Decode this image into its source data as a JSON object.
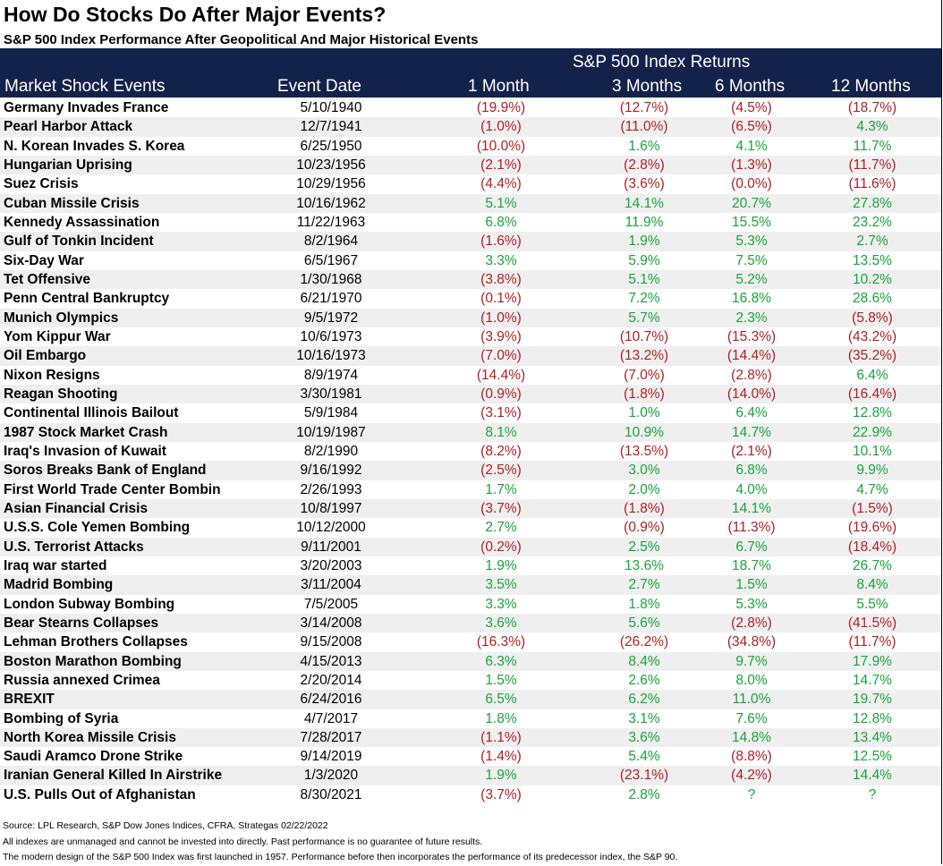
{
  "title": "How Do Stocks Do After Major Events?",
  "subtitle": "S&P 500 Index Performance After Geopolitical And Major Historical Events",
  "header": {
    "group_label": "S&P 500 Index Returns",
    "col_event": "Market Shock Events",
    "col_date": "Event Date",
    "col_1m": "1 Month",
    "col_3m": "3 Months",
    "col_6m": "6 Months",
    "col_12m": "12 Months"
  },
  "colors": {
    "header_bg": "#13224a",
    "negative": "#b01e24",
    "positive": "#18a43a",
    "row_alt": "#efefef"
  },
  "chart_data": {
    "type": "table",
    "columns": [
      "Market Shock Events",
      "Event Date",
      "1 Month",
      "3 Months",
      "6 Months",
      "12 Months"
    ],
    "rows": [
      [
        "Germany Invades France",
        "5/10/1940",
        "(19.9%)",
        "(12.7%)",
        "(4.5%)",
        "(18.7%)"
      ],
      [
        "Pearl Harbor Attack",
        "12/7/1941",
        "(1.0%)",
        "(11.0%)",
        "(6.5%)",
        "4.3%"
      ],
      [
        "N. Korean Invades S. Korea",
        "6/25/1950",
        "(10.0%)",
        "1.6%",
        "4.1%",
        "11.7%"
      ],
      [
        "Hungarian Uprising",
        "10/23/1956",
        "(2.1%)",
        "(2.8%)",
        "(1.3%)",
        "(11.7%)"
      ],
      [
        "Suez Crisis",
        "10/29/1956",
        "(4.4%)",
        "(3.6%)",
        "(0.0%)",
        "(11.6%)"
      ],
      [
        "Cuban Missile Crisis",
        "10/16/1962",
        "5.1%",
        "14.1%",
        "20.7%",
        "27.8%"
      ],
      [
        "Kennedy Assassination",
        "11/22/1963",
        "6.8%",
        "11.9%",
        "15.5%",
        "23.2%"
      ],
      [
        "Gulf of Tonkin Incident",
        "8/2/1964",
        "(1.6%)",
        "1.9%",
        "5.3%",
        "2.7%"
      ],
      [
        "Six-Day War",
        "6/5/1967",
        "3.3%",
        "5.9%",
        "7.5%",
        "13.5%"
      ],
      [
        "Tet Offensive",
        "1/30/1968",
        "(3.8%)",
        "5.1%",
        "5.2%",
        "10.2%"
      ],
      [
        "Penn Central Bankruptcy",
        "6/21/1970",
        "(0.1%)",
        "7.2%",
        "16.8%",
        "28.6%"
      ],
      [
        "Munich Olympics",
        "9/5/1972",
        "(1.0%)",
        "5.7%",
        "2.3%",
        "(5.8%)"
      ],
      [
        "Yom Kippur War",
        "10/6/1973",
        "(3.9%)",
        "(10.7%)",
        "(15.3%)",
        "(43.2%)"
      ],
      [
        "Oil Embargo",
        "10/16/1973",
        "(7.0%)",
        "(13.2%)",
        "(14.4%)",
        "(35.2%)"
      ],
      [
        "Nixon Resigns",
        "8/9/1974",
        "(14.4%)",
        "(7.0%)",
        "(2.8%)",
        "6.4%"
      ],
      [
        "Reagan Shooting",
        "3/30/1981",
        "(0.9%)",
        "(1.8%)",
        "(14.0%)",
        "(16.4%)"
      ],
      [
        "Continental Illinois Bailout",
        "5/9/1984",
        "(3.1%)",
        "1.0%",
        "6.4%",
        "12.8%"
      ],
      [
        "1987 Stock Market Crash",
        "10/19/1987",
        "8.1%",
        "10.9%",
        "14.7%",
        "22.9%"
      ],
      [
        "Iraq's Invasion of Kuwait",
        "8/2/1990",
        "(8.2%)",
        "(13.5%)",
        "(2.1%)",
        "10.1%"
      ],
      [
        "Soros Breaks Bank of England",
        "9/16/1992",
        "(2.5%)",
        "3.0%",
        "6.8%",
        "9.9%"
      ],
      [
        "First World Trade Center Bombin",
        "2/26/1993",
        "1.7%",
        "2.0%",
        "4.0%",
        "4.7%"
      ],
      [
        "Asian Financial Crisis",
        "10/8/1997",
        "(3.7%)",
        "(1.8%)",
        "14.1%",
        "(1.5%)"
      ],
      [
        "U.S.S. Cole Yemen Bombing",
        "10/12/2000",
        "2.7%",
        "(0.9%)",
        "(11.3%)",
        "(19.6%)"
      ],
      [
        "U.S. Terrorist Attacks",
        "9/11/2001",
        "(0.2%)",
        "2.5%",
        "6.7%",
        "(18.4%)"
      ],
      [
        "Iraq war started",
        "3/20/2003",
        "1.9%",
        "13.6%",
        "18.7%",
        "26.7%"
      ],
      [
        "Madrid Bombing",
        "3/11/2004",
        "3.5%",
        "2.7%",
        "1.5%",
        "8.4%"
      ],
      [
        "London Subway Bombing",
        "7/5/2005",
        "3.3%",
        "1.8%",
        "5.3%",
        "5.5%"
      ],
      [
        "Bear Stearns Collapses",
        "3/14/2008",
        "3.6%",
        "5.6%",
        "(2.8%)",
        "(41.5%)"
      ],
      [
        "Lehman Brothers Collapses",
        "9/15/2008",
        "(16.3%)",
        "(26.2%)",
        "(34.8%)",
        "(11.7%)"
      ],
      [
        "Boston Marathon Bombing",
        "4/15/2013",
        "6.3%",
        "8.4%",
        "9.7%",
        "17.9%"
      ],
      [
        "Russia annexed Crimea",
        "2/20/2014",
        "1.5%",
        "2.6%",
        "8.0%",
        "14.7%"
      ],
      [
        "BREXIT",
        "6/24/2016",
        "6.5%",
        "6.2%",
        "11.0%",
        "19.7%"
      ],
      [
        "Bombing of Syria",
        "4/7/2017",
        "1.8%",
        "3.1%",
        "7.6%",
        "12.8%"
      ],
      [
        "North Korea Missile Crisis",
        "7/28/2017",
        "(1.1%)",
        "3.6%",
        "14.8%",
        "13.4%"
      ],
      [
        "Saudi Aramco Drone Strike",
        "9/14/2019",
        "(1.4%)",
        "5.4%",
        "(8.8%)",
        "12.5%"
      ],
      [
        "Iranian General Killed In Airstrike",
        "1/3/2020",
        "1.9%",
        "(23.1%)",
        "(4.2%)",
        "14.4%"
      ],
      [
        "U.S. Pulls Out of Afghanistan",
        "8/30/2021",
        "(3.7%)",
        "2.8%",
        "?",
        "?"
      ]
    ]
  },
  "notes": [
    "Source: LPL Research, S&P Dow Jones Indices, CFRA, Strategas 02/22/2022",
    "All indexes are unmanaged and cannot be invested into directly.  Past performance is no guarantee of future results.",
    "The modern design of the S&P 500 Index was first launched in 1957. Performance before then incorporates the performance of its predecessor index, the S&P 90."
  ]
}
